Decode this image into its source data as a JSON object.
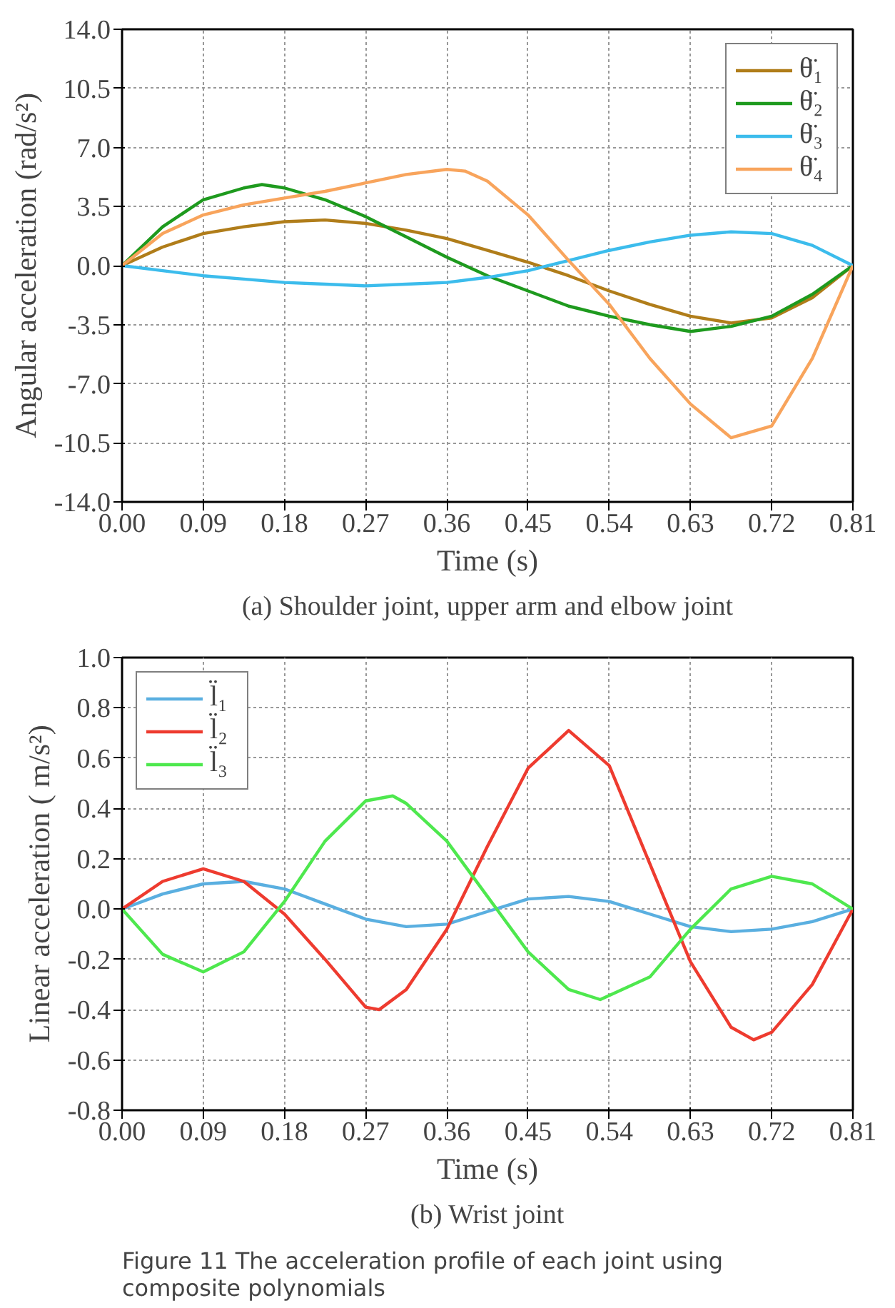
{
  "chart_data": [
    {
      "type": "line",
      "xlabel": "Time (s)",
      "ylabel": "Angular acceleration (rad/s²)",
      "xlim": [
        0,
        0.81
      ],
      "ylim": [
        -14,
        14
      ],
      "xticks": [
        {
          "value": 0,
          "label": "0.00"
        },
        0.09,
        0.18,
        0.27,
        0.36,
        0.45,
        0.54,
        0.63,
        0.72,
        0.81
      ],
      "yticks": [
        {
          "value": -14,
          "label": "-14.0"
        },
        -10.5,
        {
          "value": -7,
          "label": "-7.0"
        },
        -3.5,
        {
          "value": 0,
          "label": "0.0"
        },
        3.5,
        {
          "value": 7,
          "label": "7.0"
        },
        10.5,
        {
          "value": 14,
          "label": "14.0"
        }
      ],
      "grid": true,
      "legend": "top right",
      "annotations": [
        "(a) Shoulder joint, upper arm and elbow joint"
      ],
      "series": [
        {
          "name": "θ̈₁",
          "color": "#b07d1a",
          "x": [
            0,
            0.045,
            0.09,
            0.135,
            0.18,
            0.225,
            0.27,
            0.315,
            0.36,
            0.405,
            0.45,
            0.495,
            0.54,
            0.585,
            0.63,
            0.675,
            0.72,
            0.765,
            0.81
          ],
          "values": [
            0,
            1.1,
            1.9,
            2.3,
            2.6,
            2.7,
            2.5,
            2.1,
            1.6,
            0.9,
            0.2,
            -0.6,
            -1.5,
            -2.3,
            -3.0,
            -3.4,
            -3.1,
            -1.9,
            0
          ]
        },
        {
          "name": "θ̈₂",
          "color": "#1e9a1e",
          "x": [
            0,
            0.045,
            0.09,
            0.135,
            0.155,
            0.18,
            0.225,
            0.27,
            0.315,
            0.36,
            0.405,
            0.45,
            0.495,
            0.54,
            0.585,
            0.63,
            0.675,
            0.72,
            0.765,
            0.81
          ],
          "values": [
            0,
            2.3,
            3.9,
            4.6,
            4.8,
            4.6,
            3.9,
            2.9,
            1.7,
            0.5,
            -0.6,
            -1.5,
            -2.4,
            -3.0,
            -3.5,
            -3.9,
            -3.6,
            -3.0,
            -1.7,
            0
          ]
        },
        {
          "name": "θ̈₃",
          "color": "#3cbcec",
          "x": [
            0,
            0.045,
            0.09,
            0.135,
            0.18,
            0.225,
            0.27,
            0.315,
            0.36,
            0.405,
            0.45,
            0.495,
            0.54,
            0.585,
            0.63,
            0.675,
            0.72,
            0.765,
            0.81
          ],
          "values": [
            0,
            -0.3,
            -0.6,
            -0.8,
            -1.0,
            -1.1,
            -1.2,
            -1.1,
            -1.0,
            -0.7,
            -0.3,
            0.3,
            0.9,
            1.4,
            1.8,
            2.0,
            1.9,
            1.2,
            0
          ]
        },
        {
          "name": "θ̈₄",
          "color": "#f8a45c",
          "x": [
            0,
            0.045,
            0.09,
            0.135,
            0.18,
            0.225,
            0.27,
            0.315,
            0.36,
            0.38,
            0.405,
            0.45,
            0.495,
            0.54,
            0.585,
            0.63,
            0.675,
            0.72,
            0.765,
            0.81
          ],
          "values": [
            0,
            1.9,
            3.0,
            3.6,
            4.0,
            4.4,
            4.9,
            5.4,
            5.7,
            5.6,
            5.0,
            3.0,
            0.3,
            -2.3,
            -5.5,
            -8.2,
            -10.2,
            -9.5,
            -5.5,
            0
          ]
        }
      ]
    },
    {
      "type": "line",
      "xlabel": "Time (s)",
      "ylabel": "Linear acceleration ( m/s²)",
      "xlim": [
        0,
        0.81
      ],
      "ylim": [
        -0.8,
        1.0
      ],
      "xticks": [
        {
          "value": 0,
          "label": "0.00"
        },
        0.09,
        0.18,
        0.27,
        0.36,
        0.45,
        0.54,
        0.63,
        0.72,
        0.81
      ],
      "yticks": [
        -0.8,
        -0.6,
        -0.4,
        -0.2,
        {
          "value": 0,
          "label": "0.0"
        },
        0.2,
        0.4,
        0.6,
        0.8,
        {
          "value": 1,
          "label": "1.0"
        }
      ],
      "grid": true,
      "legend": "top left",
      "annotations": [
        "(b) Wrist joint",
        "Figure 11  The acceleration profile of each joint using composite polynomials"
      ],
      "series": [
        {
          "name": "l̈₁",
          "color": "#5aafe0",
          "x": [
            0,
            0.045,
            0.09,
            0.135,
            0.18,
            0.225,
            0.27,
            0.315,
            0.36,
            0.405,
            0.45,
            0.495,
            0.54,
            0.585,
            0.63,
            0.675,
            0.72,
            0.765,
            0.81
          ],
          "values": [
            0,
            0.06,
            0.1,
            0.11,
            0.08,
            0.02,
            -0.04,
            -0.07,
            -0.06,
            -0.01,
            0.04,
            0.05,
            0.03,
            -0.02,
            -0.07,
            -0.09,
            -0.08,
            -0.05,
            0
          ]
        },
        {
          "name": "l̈₂",
          "color": "#ee3b2f",
          "x": [
            0,
            0.045,
            0.09,
            0.135,
            0.18,
            0.225,
            0.27,
            0.285,
            0.315,
            0.36,
            0.405,
            0.45,
            0.495,
            0.54,
            0.585,
            0.63,
            0.675,
            0.7,
            0.72,
            0.765,
            0.81
          ],
          "values": [
            0,
            0.11,
            0.16,
            0.11,
            -0.02,
            -0.2,
            -0.39,
            -0.4,
            -0.32,
            -0.08,
            0.25,
            0.56,
            0.71,
            0.57,
            0.18,
            -0.21,
            -0.47,
            -0.52,
            -0.49,
            -0.3,
            0
          ]
        },
        {
          "name": "l̈₃",
          "color": "#4ee84e",
          "x": [
            0,
            0.045,
            0.09,
            0.135,
            0.18,
            0.225,
            0.27,
            0.3,
            0.315,
            0.36,
            0.405,
            0.45,
            0.495,
            0.53,
            0.585,
            0.63,
            0.675,
            0.72,
            0.765,
            0.81
          ],
          "values": [
            0,
            -0.18,
            -0.25,
            -0.17,
            0.03,
            0.27,
            0.43,
            0.45,
            0.42,
            0.27,
            0.05,
            -0.17,
            -0.32,
            -0.36,
            -0.27,
            -0.08,
            0.08,
            0.13,
            0.1,
            0
          ]
        }
      ]
    }
  ]
}
